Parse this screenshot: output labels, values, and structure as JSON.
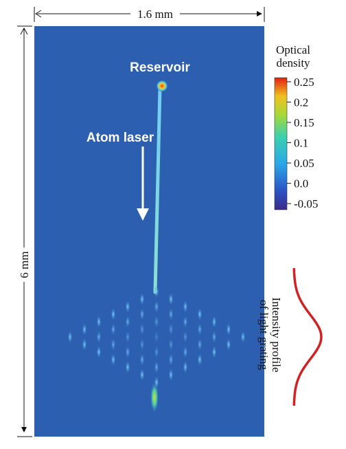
{
  "dimension_labels": {
    "width": "1.6 mm",
    "height": "6 mm"
  },
  "annotations": {
    "reservoir": "Reservoir",
    "atom_laser": "Atom laser"
  },
  "colorbar": {
    "title": [
      "Optical",
      "density"
    ],
    "range": [
      -0.065,
      0.26
    ],
    "ticks": [
      0.25,
      0.2,
      0.15,
      0.1,
      0.05,
      {
        "value": 0,
        "label": "0.0"
      },
      -0.05
    ]
  },
  "profile_label": [
    "Intensity profile",
    "of light grating"
  ]
}
